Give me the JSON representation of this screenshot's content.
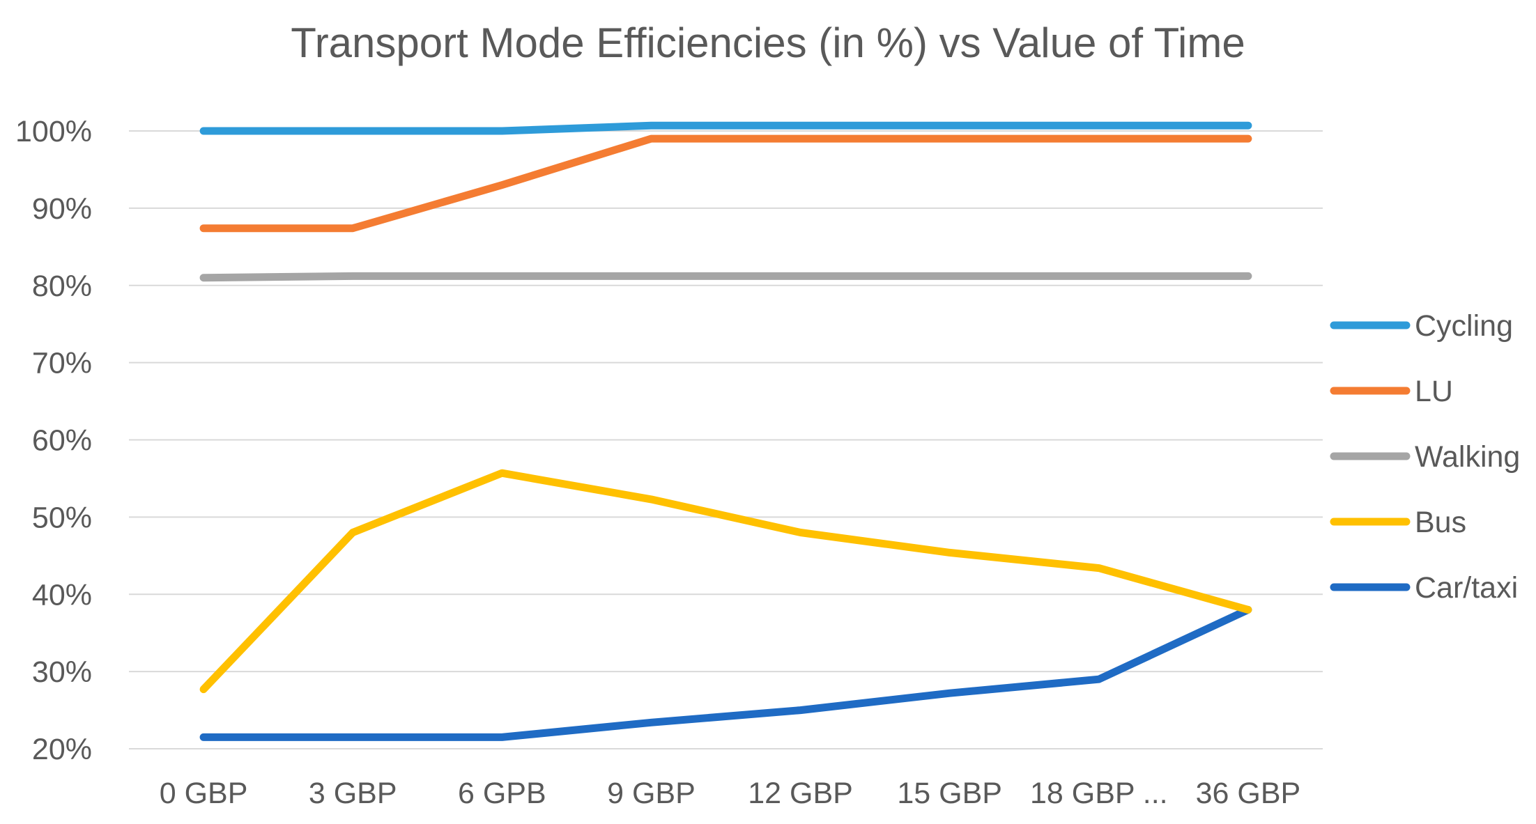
{
  "chart_data": {
    "type": "line",
    "title": "Transport Mode Efficiencies (in %) vs Value of Time",
    "xlabel": "",
    "ylabel": "",
    "categories": [
      "0 GBP",
      "3 GBP",
      "6 GPB",
      "9 GBP",
      "12 GBP",
      "15 GBP",
      "18 GBP ...",
      "36 GBP"
    ],
    "ylim": [
      20,
      100
    ],
    "yticks": [
      20,
      30,
      40,
      50,
      60,
      70,
      80,
      90,
      100
    ],
    "ytick_labels": [
      "20%",
      "30%",
      "40%",
      "50%",
      "60%",
      "70%",
      "80%",
      "90%",
      "100%"
    ],
    "grid": true,
    "legend_position": "right",
    "series": [
      {
        "name": "Cycling",
        "color": "#2E9BD9",
        "values": [
          100,
          100,
          100,
          100.7,
          100.7,
          100.7,
          100.7,
          100.7
        ]
      },
      {
        "name": "LU",
        "color": "#F47C32",
        "values": [
          87.4,
          87.4,
          93,
          99,
          99,
          99,
          99,
          99
        ]
      },
      {
        "name": "Walking",
        "color": "#A5A5A5",
        "values": [
          81,
          81.2,
          81.2,
          81.2,
          81.2,
          81.2,
          81.2,
          81.2
        ]
      },
      {
        "name": "Bus",
        "color": "#FFC000",
        "values": [
          27.7,
          48,
          55.7,
          52.3,
          48,
          45.4,
          43.4,
          38
        ]
      },
      {
        "name": "Car/taxi",
        "color": "#1F6BC4",
        "values": [
          21.5,
          21.5,
          21.5,
          23.4,
          25,
          27.2,
          29,
          38
        ]
      }
    ]
  }
}
